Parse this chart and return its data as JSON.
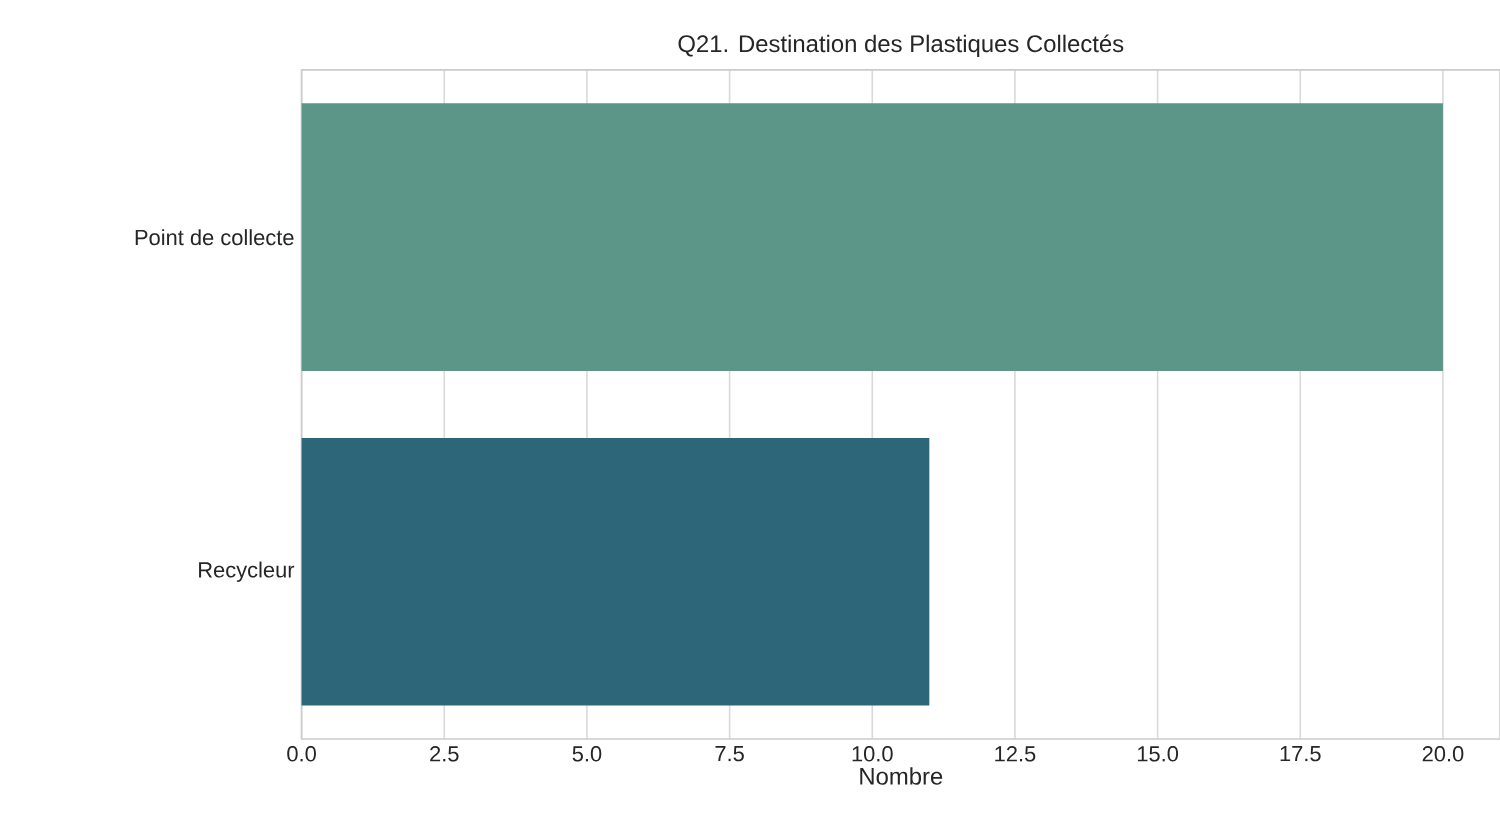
{
  "chart_data": {
    "type": "bar",
    "orientation": "horizontal",
    "title": "Q21. Destination des Plastiques Collectés",
    "xlabel": "Nombre",
    "categories": [
      "Point de collecte",
      "Recycleur"
    ],
    "values": [
      20,
      11
    ],
    "colors": [
      "#5c9689",
      "#2d6679"
    ],
    "xlim": [
      0,
      21
    ],
    "xticks": [
      {
        "value": 0,
        "label": "0.0"
      },
      {
        "value": 2.5,
        "label": "2.5"
      },
      {
        "value": 5,
        "label": "5.0"
      },
      {
        "value": 7.5,
        "label": "7.5"
      },
      {
        "value": 10,
        "label": "10.0"
      },
      {
        "value": 12.5,
        "label": "12.5"
      },
      {
        "value": 15,
        "label": "15.0"
      },
      {
        "value": 17.5,
        "label": "17.5"
      },
      {
        "value": 20,
        "label": "20.0"
      }
    ],
    "grid": "x"
  }
}
